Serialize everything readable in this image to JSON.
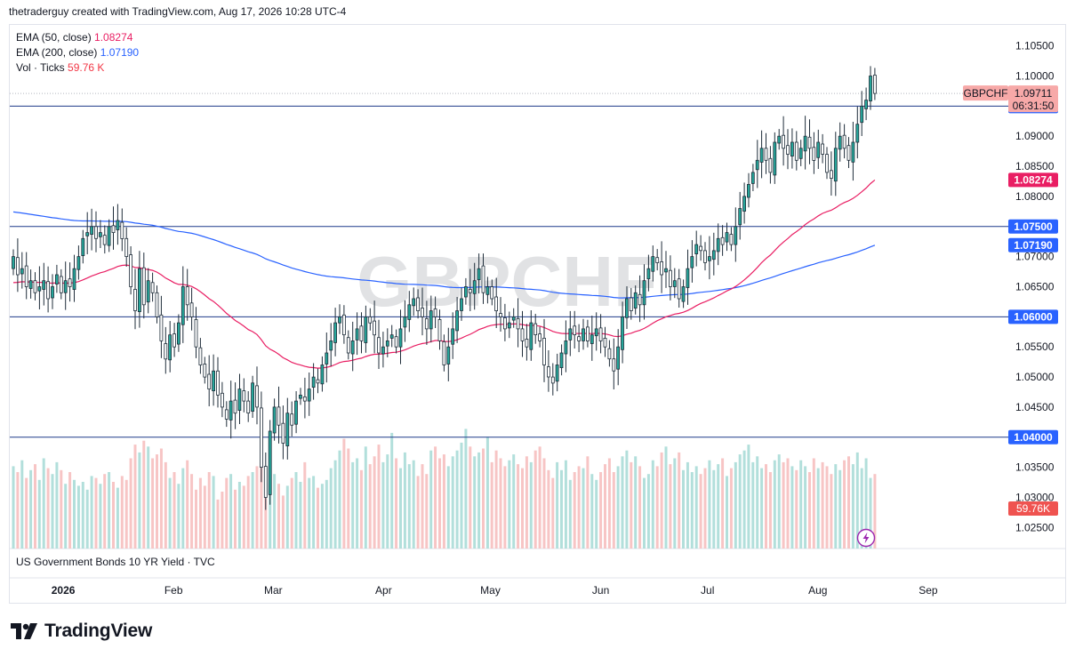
{
  "header": {
    "text": "thetraderguy created with TradingView.com, Aug 17, 2026 10:28 UTC-4"
  },
  "legend": [
    {
      "label": "EMA (50, close)",
      "value": "1.08274"
    },
    {
      "label": "EMA (200, close)",
      "value": "1.07190"
    },
    {
      "label": "Vol · Ticks",
      "value": "59.76 K"
    }
  ],
  "watermark": "GBPCHF",
  "symbol_tag": {
    "symbol": "GBPCHF",
    "price": "1.09711",
    "countdown": "06:31:50"
  },
  "pane2_title": "US Government Bonds 10 YR Yield · TVC",
  "footer": {
    "brand": "TradingView"
  },
  "colors": {
    "up": "#26a69a",
    "down": "#ef5350",
    "up_vol": "#b2dfdb",
    "down_vol": "#f7c5c5",
    "ema50": "#e91e63",
    "ema200": "#2962ff",
    "hline": "#1e3a8a",
    "axis_text": "#131722",
    "level_badge": "#2962ff",
    "ema50_badge": "#e91e63",
    "ema200_badge": "#2962ff",
    "price_badge": "#f7a9a8"
  },
  "chart_data": {
    "type": "candlestick",
    "symbol": "GBPCHF",
    "y_ticks": [
      "1.10500",
      "1.10000",
      "1.09000",
      "1.08500",
      "1.08000",
      "1.07000",
      "1.06500",
      "1.05500",
      "1.05000",
      "1.04500",
      "1.03500",
      "1.03000",
      "1.02500"
    ],
    "y_tick_values": [
      1.105,
      1.1,
      1.09,
      1.085,
      1.08,
      1.07,
      1.065,
      1.055,
      1.05,
      1.045,
      1.035,
      1.03,
      1.025
    ],
    "ylim": [
      1.0215,
      1.1085
    ],
    "x_labels": [
      {
        "label": "2026",
        "day": 0,
        "bold": true
      },
      {
        "label": "Feb",
        "day": 31
      },
      {
        "label": "Mar",
        "day": 59
      },
      {
        "label": "Apr",
        "day": 90
      },
      {
        "label": "May",
        "day": 120
      },
      {
        "label": "Jun",
        "day": 151
      },
      {
        "label": "Jul",
        "day": 181
      },
      {
        "label": "Aug",
        "day": 212
      },
      {
        "label": "Sep",
        "day": 243
      }
    ],
    "xlim_days": [
      -15,
      265
    ],
    "horizontal_levels": [
      {
        "value": 1.095,
        "label": "1.09500"
      },
      {
        "value": 1.075,
        "label": "1.07500"
      },
      {
        "value": 1.06,
        "label": "1.06000"
      },
      {
        "value": 1.04,
        "label": "1.04000"
      }
    ],
    "ema50_badge": {
      "value": 1.08274,
      "label": "1.08274"
    },
    "ema200_badge": {
      "value": 1.0719,
      "label": "1.07190"
    },
    "last_price": 1.09711,
    "volume_badge": "59.76K",
    "start_day": -14,
    "closes": [
      1.07,
      1.067,
      1.068,
      1.065,
      1.066,
      1.064,
      1.065,
      1.066,
      1.063,
      1.065,
      1.067,
      1.064,
      1.066,
      1.065,
      1.068,
      1.07,
      1.073,
      1.074,
      1.075,
      1.073,
      1.074,
      1.072,
      1.075,
      1.074,
      1.076,
      1.073,
      1.07,
      1.065,
      1.061,
      1.068,
      1.062,
      1.066,
      1.064,
      1.06,
      1.056,
      1.053,
      1.057,
      1.055,
      1.059,
      1.065,
      1.062,
      1.06,
      1.055,
      1.052,
      1.05,
      1.048,
      1.051,
      1.047,
      1.045,
      1.043,
      1.046,
      1.044,
      1.048,
      1.046,
      1.044,
      1.049,
      1.045,
      1.035,
      1.03,
      1.041,
      1.045,
      1.042,
      1.039,
      1.044,
      1.042,
      1.046,
      1.047,
      1.046,
      1.048,
      1.05,
      1.049,
      1.052,
      1.054,
      1.056,
      1.059,
      1.06,
      1.057,
      1.054,
      1.056,
      1.058,
      1.056,
      1.06,
      1.059,
      1.057,
      1.054,
      1.055,
      1.056,
      1.057,
      1.055,
      1.058,
      1.06,
      1.062,
      1.063,
      1.061,
      1.06,
      1.058,
      1.061,
      1.06,
      1.056,
      1.052,
      1.055,
      1.058,
      1.061,
      1.063,
      1.065,
      1.064,
      1.066,
      1.068,
      1.064,
      1.065,
      1.063,
      1.061,
      1.06,
      1.058,
      1.059,
      1.06,
      1.058,
      1.056,
      1.055,
      1.059,
      1.057,
      1.056,
      1.052,
      1.05,
      1.049,
      1.052,
      1.054,
      1.056,
      1.058,
      1.057,
      1.056,
      1.058,
      1.056,
      1.057,
      1.058,
      1.056,
      1.055,
      1.053,
      1.051,
      1.055,
      1.06,
      1.063,
      1.061,
      1.064,
      1.062,
      1.066,
      1.068,
      1.07,
      1.069,
      1.067,
      1.068,
      1.065,
      1.066,
      1.063,
      1.065,
      1.068,
      1.07,
      1.072,
      1.071,
      1.069,
      1.07,
      1.071,
      1.073,
      1.072,
      1.074,
      1.072,
      1.075,
      1.078,
      1.08,
      1.082,
      1.084,
      1.086,
      1.088,
      1.086,
      1.084,
      1.089,
      1.09,
      1.088,
      1.087,
      1.089,
      1.086,
      1.088,
      1.09,
      1.088,
      1.086,
      1.089,
      1.087,
      1.084,
      1.083,
      1.088,
      1.09,
      1.088,
      1.086,
      1.089,
      1.092,
      1.095,
      1.096,
      1.1,
      1.0971
    ],
    "volumes": [
      4.2,
      3.9,
      4.5,
      3.6,
      4.0,
      4.3,
      3.5,
      4.6,
      4.1,
      3.8,
      4.4,
      4.0,
      3.3,
      3.9,
      3.5,
      3.2,
      3.4,
      3.0,
      3.7,
      3.6,
      3.3,
      3.8,
      3.9,
      3.4,
      3.1,
      3.7,
      3.5,
      4.6,
      5.3,
      4.9,
      5.5,
      5.2,
      4.6,
      4.8,
      5.1,
      4.4,
      3.6,
      3.9,
      3.3,
      4.1,
      4.5,
      3.8,
      3.0,
      3.6,
      3.2,
      3.9,
      3.7,
      2.5,
      2.9,
      3.6,
      3.8,
      3.0,
      3.4,
      3.2,
      3.7,
      3.9,
      4.2,
      5.0,
      4.1,
      3.5,
      3.8,
      3.3,
      2.7,
      3.2,
      3.6,
      3.9,
      3.4,
      4.4,
      3.6,
      3.7,
      3.1,
      3.3,
      3.5,
      4.1,
      4.5,
      5.0,
      5.6,
      5.1,
      4.4,
      4.6,
      4.0,
      5.2,
      4.3,
      4.7,
      5.3,
      4.4,
      4.8,
      5.9,
      4.6,
      4.1,
      4.9,
      4.3,
      4.5,
      3.7,
      4.3,
      3.8,
      5.0,
      5.2,
      4.6,
      4.8,
      4.2,
      4.7,
      5.0,
      5.4,
      6.1,
      5.2,
      4.7,
      4.9,
      5.1,
      5.7,
      4.4,
      5.0,
      4.6,
      4.2,
      4.5,
      4.8,
      4.3,
      4.1,
      4.7,
      4.4,
      5.0,
      5.2,
      4.6,
      4.0,
      3.6,
      4.4,
      4.0,
      4.5,
      3.5,
      3.9,
      4.2,
      4.1,
      4.7,
      3.8,
      3.5,
      3.9,
      4.3,
      4.6,
      3.9,
      4.2,
      4.7,
      5.0,
      4.4,
      4.7,
      4.2,
      3.6,
      3.8,
      4.5,
      4.2,
      4.9,
      5.2,
      4.3,
      4.6,
      4.9,
      4.0,
      4.4,
      3.9,
      4.2,
      3.8,
      4.1,
      4.5,
      4.0,
      4.3,
      4.6,
      3.7,
      4.1,
      4.4,
      4.8,
      5.0,
      5.3,
      4.4,
      4.7,
      4.1,
      4.3,
      3.9,
      4.5,
      4.8,
      4.4,
      4.6,
      4.2,
      4.0,
      4.5,
      4.2,
      3.9,
      4.6,
      4.1,
      4.4,
      4.2,
      3.8,
      4.3,
      4.0,
      4.5,
      4.7,
      4.3,
      4.9,
      4.1,
      4.6,
      3.6,
      3.8,
      3.4,
      3.0,
      2.2
    ]
  }
}
